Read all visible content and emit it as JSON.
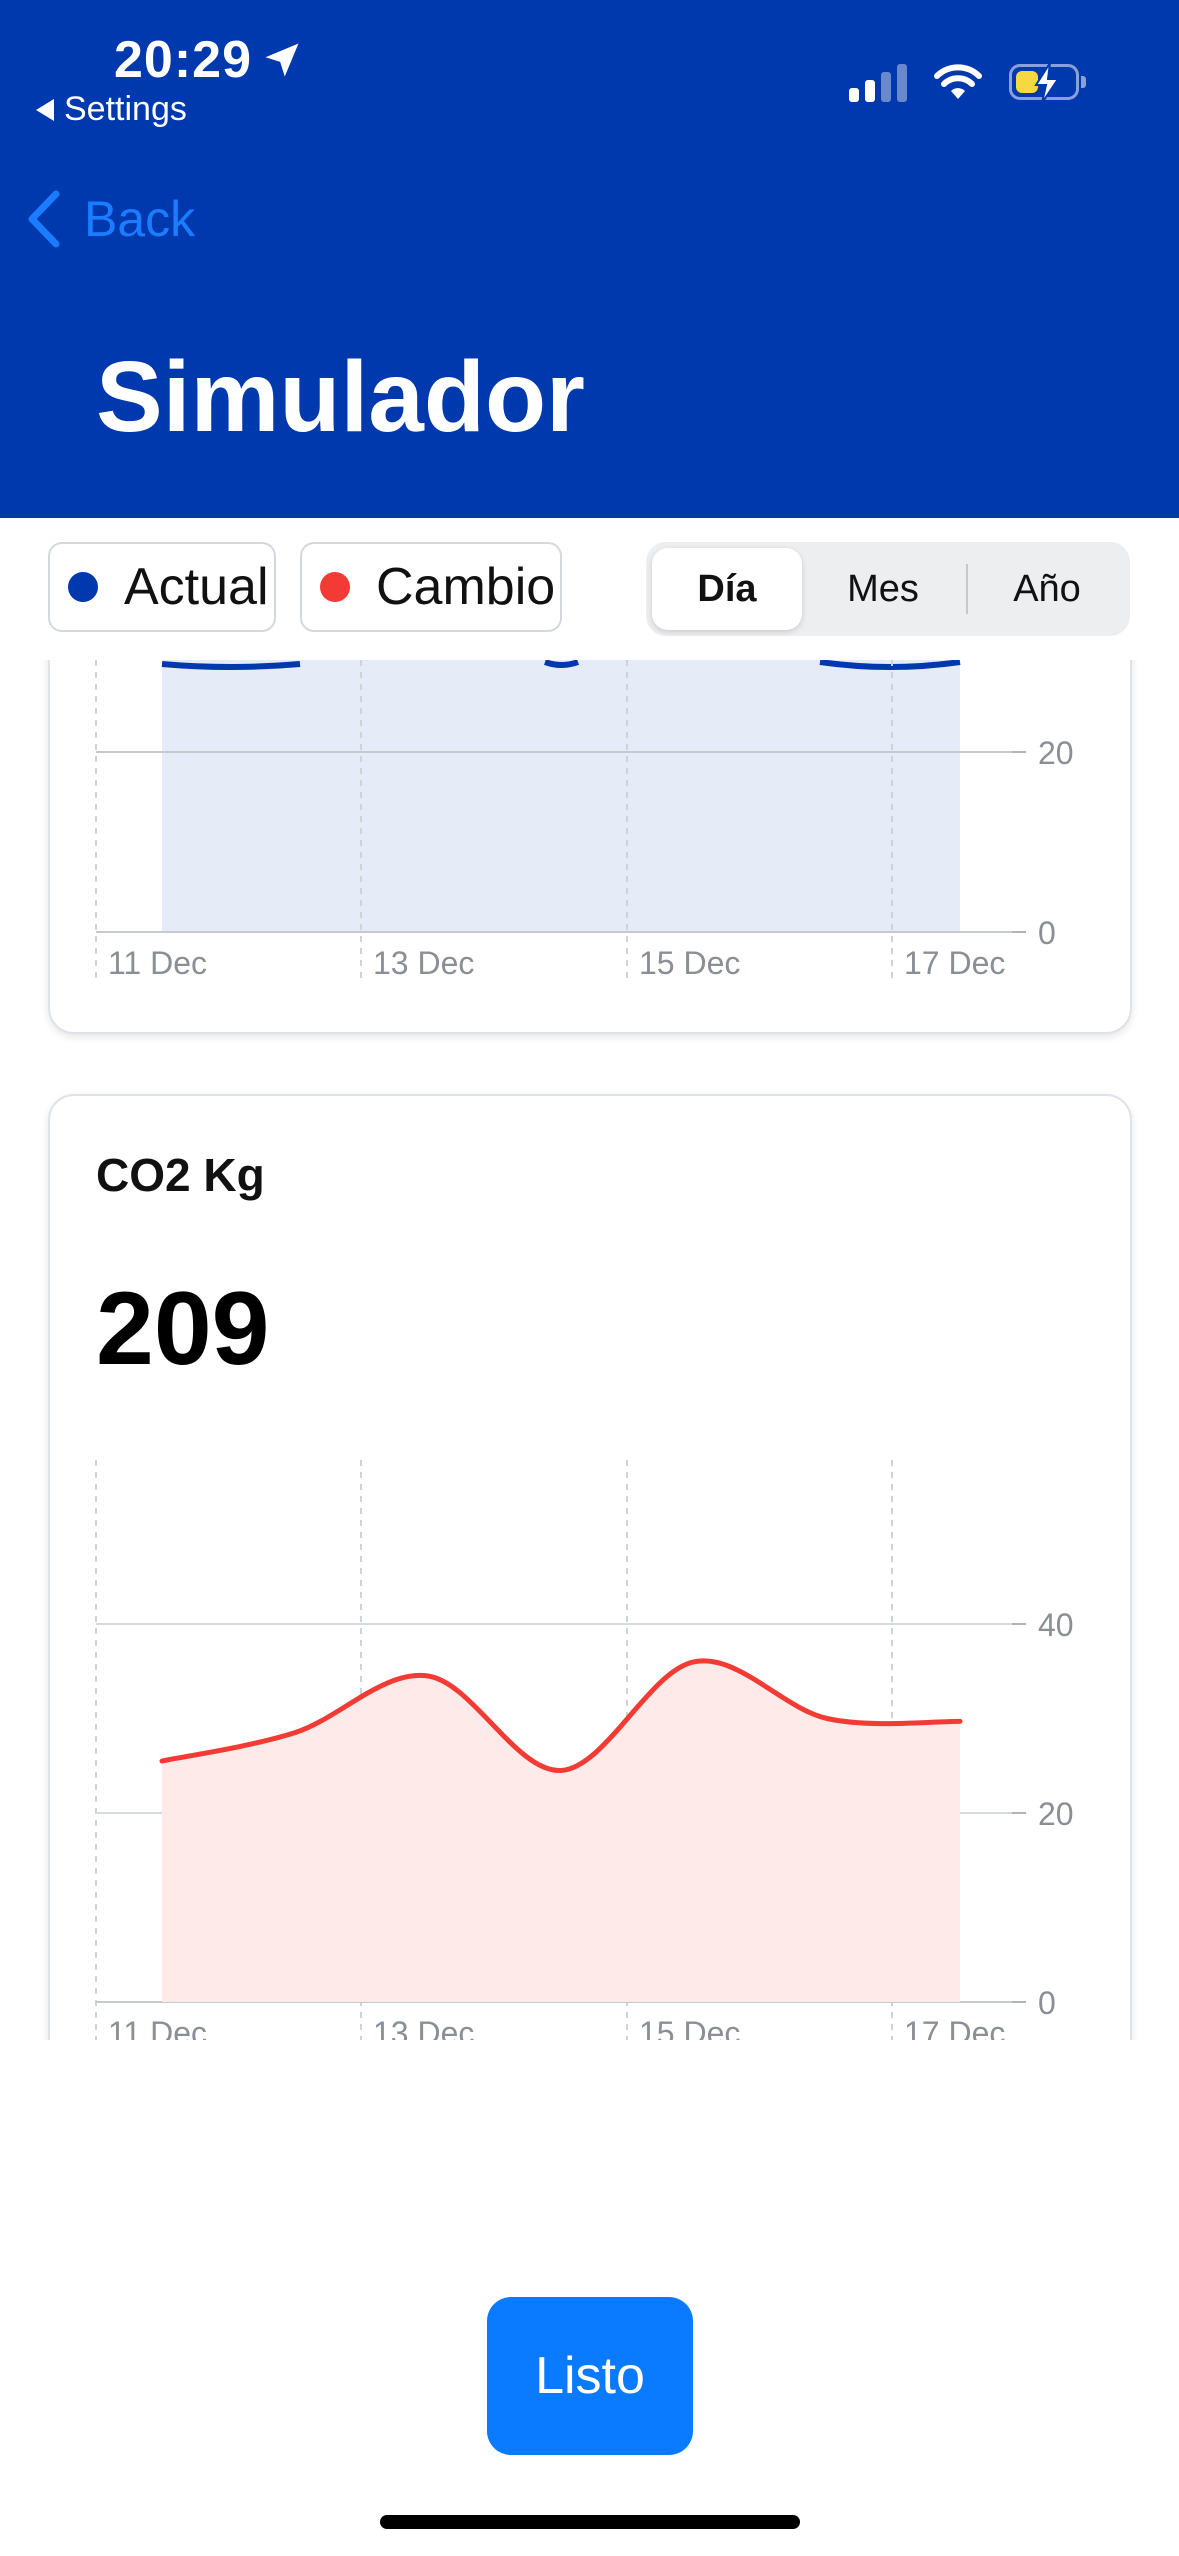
{
  "status_bar": {
    "time": "20:29",
    "back_app": "Settings"
  },
  "nav": {
    "back_label": "Back",
    "title": "Simulador"
  },
  "legend": [
    {
      "label": "Actual",
      "color": "#0038AE"
    },
    {
      "label": "Cambio",
      "color": "#F23B34"
    }
  ],
  "segmented": {
    "options": [
      "Día",
      "Mes",
      "Año"
    ],
    "selected": "Día"
  },
  "chart_data": [
    {
      "type": "area",
      "title": "",
      "x": [
        "11 Dec",
        "12 Dec",
        "13 Dec",
        "14 Dec",
        "15 Dec",
        "16 Dec",
        "17 Dec"
      ],
      "x_ticks": [
        "11 Dec",
        "13 Dec",
        "15 Dec",
        "17 Dec"
      ],
      "y_ticks": [
        0,
        20
      ],
      "color": "#0038AE",
      "fill": "#E6ECF7",
      "note_partially_visible": true
    },
    {
      "type": "area",
      "title": "CO2 Kg",
      "total": "209",
      "x": [
        "11 Dec",
        "12 Dec",
        "13 Dec",
        "14 Dec",
        "15 Dec",
        "16 Dec",
        "17 Dec"
      ],
      "x_ticks": [
        "11 Dec",
        "13 Dec",
        "15 Dec",
        "17 Dec"
      ],
      "values": [
        25.5,
        28.5,
        34.5,
        24.5,
        36,
        30,
        29.7
      ],
      "y_ticks": [
        0,
        20,
        40
      ],
      "ylim": [
        0,
        40
      ],
      "color": "#F23B34",
      "fill": "#FDEAE9"
    }
  ],
  "footer": {
    "done_label": "Listo"
  }
}
